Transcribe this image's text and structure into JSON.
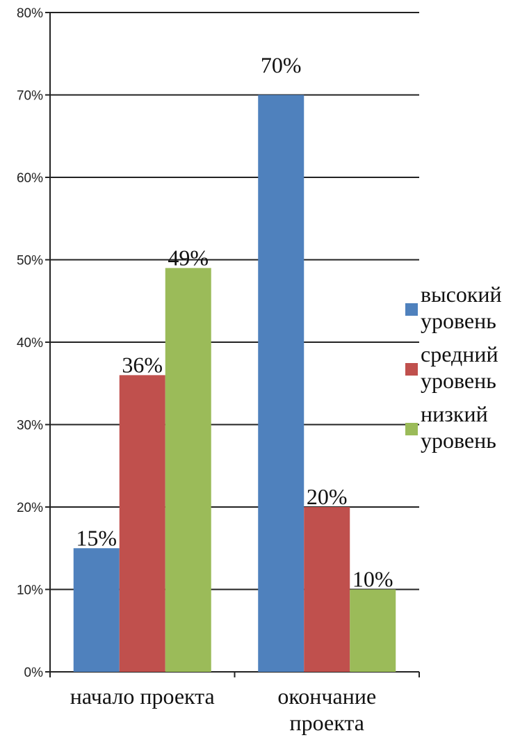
{
  "chart_data": {
    "type": "bar",
    "categories": [
      "начало проекта",
      "окончание проекта"
    ],
    "category_lines": [
      [
        "начало проекта"
      ],
      [
        "окончание",
        "проекта"
      ]
    ],
    "series": [
      {
        "name": "высокий уровень",
        "name_lines": [
          "высокий",
          "уровень"
        ],
        "color": "#4f81bd",
        "values": [
          15,
          70
        ],
        "labels": [
          "15%",
          "70%"
        ]
      },
      {
        "name": "средний уровень",
        "name_lines": [
          "средний",
          "уровень"
        ],
        "color": "#c0504d",
        "values": [
          36,
          20
        ],
        "labels": [
          "36%",
          "20%"
        ]
      },
      {
        "name": "низкий уровень",
        "name_lines": [
          "низкий",
          "уровень"
        ],
        "color": "#9bbb59",
        "values": [
          49,
          10
        ],
        "labels": [
          "49%",
          "10%"
        ]
      }
    ],
    "y_ticks": [
      "0%",
      "10%",
      "20%",
      "30%",
      "40%",
      "50%",
      "60%",
      "70%",
      "80%"
    ],
    "ylim": [
      0,
      80
    ],
    "grid": true,
    "legend": "right"
  }
}
